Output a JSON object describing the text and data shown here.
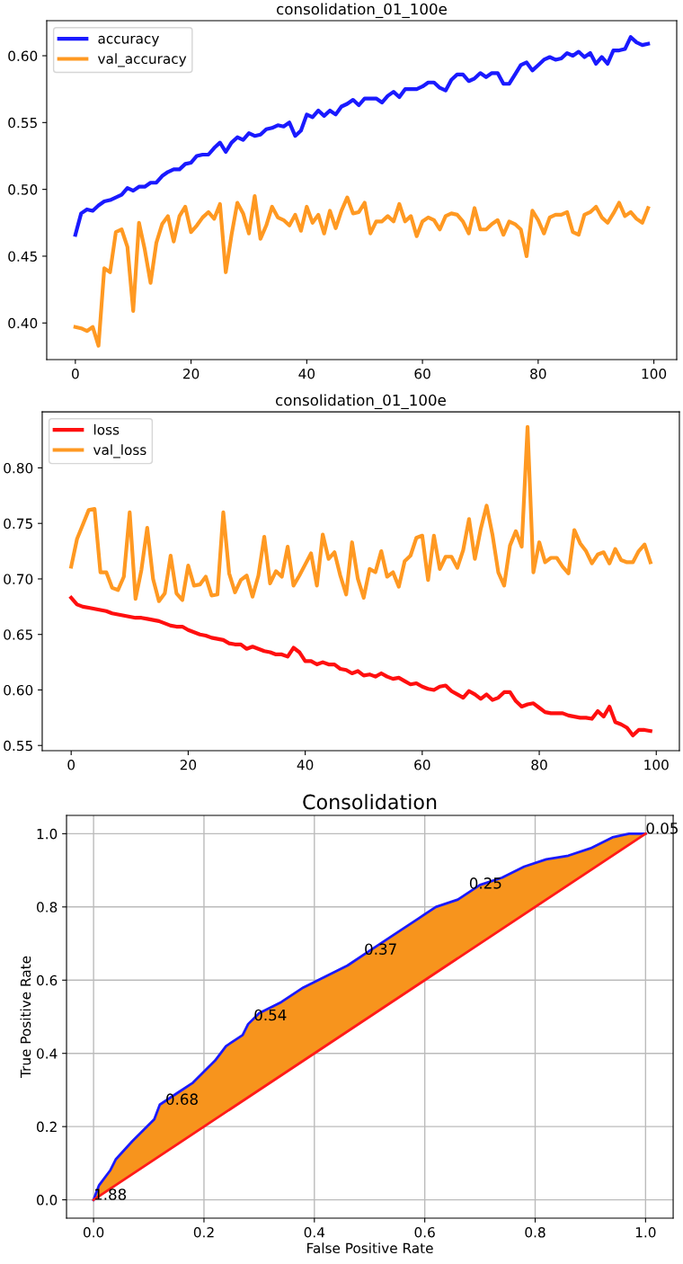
{
  "chart_data": [
    {
      "type": "line",
      "title": "consolidation_01_100e",
      "legend": "top left",
      "grid": false,
      "xlim": [
        -4.95,
        103.95
      ],
      "xticks": [
        0,
        20,
        40,
        60,
        80,
        100
      ],
      "ylim": [
        0.3726,
        0.6262
      ],
      "yticks": [
        {
          "value": 0.4,
          "label": "0.40"
        },
        {
          "value": 0.45,
          "label": "0.45"
        },
        {
          "value": 0.5,
          "label": "0.50"
        },
        {
          "value": 0.55,
          "label": "0.55"
        },
        {
          "value": 0.6,
          "label": "0.60"
        }
      ],
      "x": [
        0,
        1,
        2,
        3,
        4,
        5,
        6,
        7,
        8,
        9,
        10,
        11,
        12,
        13,
        14,
        15,
        16,
        17,
        18,
        19,
        20,
        21,
        22,
        23,
        24,
        25,
        26,
        27,
        28,
        29,
        30,
        31,
        32,
        33,
        34,
        35,
        36,
        37,
        38,
        39,
        40,
        41,
        42,
        43,
        44,
        45,
        46,
        47,
        48,
        49,
        50,
        51,
        52,
        53,
        54,
        55,
        56,
        57,
        58,
        59,
        60,
        61,
        62,
        63,
        64,
        65,
        66,
        67,
        68,
        69,
        70,
        71,
        72,
        73,
        74,
        75,
        76,
        77,
        78,
        79,
        80,
        81,
        82,
        83,
        84,
        85,
        86,
        87,
        88,
        89,
        90,
        91,
        92,
        93,
        94,
        95,
        96,
        97,
        98,
        99
      ],
      "series": [
        {
          "name": "accuracy",
          "color": "#1a1aff",
          "values": [
            0.466,
            0.482,
            0.485,
            0.484,
            0.488,
            0.491,
            0.492,
            0.494,
            0.496,
            0.501,
            0.499,
            0.502,
            0.502,
            0.505,
            0.505,
            0.51,
            0.513,
            0.515,
            0.515,
            0.519,
            0.52,
            0.525,
            0.526,
            0.526,
            0.531,
            0.535,
            0.528,
            0.535,
            0.539,
            0.537,
            0.542,
            0.54,
            0.541,
            0.545,
            0.546,
            0.548,
            0.547,
            0.55,
            0.54,
            0.544,
            0.556,
            0.554,
            0.559,
            0.555,
            0.559,
            0.556,
            0.562,
            0.564,
            0.567,
            0.563,
            0.568,
            0.568,
            0.568,
            0.565,
            0.57,
            0.573,
            0.569,
            0.575,
            0.575,
            0.575,
            0.577,
            0.58,
            0.58,
            0.576,
            0.574,
            0.582,
            0.586,
            0.586,
            0.581,
            0.583,
            0.587,
            0.584,
            0.587,
            0.587,
            0.579,
            0.579,
            0.586,
            0.593,
            0.595,
            0.589,
            0.593,
            0.597,
            0.599,
            0.597,
            0.598,
            0.602,
            0.6,
            0.603,
            0.599,
            0.602,
            0.594,
            0.599,
            0.594,
            0.604,
            0.604,
            0.605,
            0.614,
            0.61,
            0.608,
            0.609
          ]
        },
        {
          "name": "val_accuracy",
          "color": "#ff9922",
          "values": [
            0.397,
            0.396,
            0.394,
            0.397,
            0.383,
            0.441,
            0.438,
            0.468,
            0.47,
            0.457,
            0.409,
            0.475,
            0.455,
            0.43,
            0.46,
            0.474,
            0.48,
            0.461,
            0.48,
            0.487,
            0.468,
            0.473,
            0.479,
            0.483,
            0.478,
            0.489,
            0.438,
            0.466,
            0.49,
            0.482,
            0.467,
            0.495,
            0.463,
            0.473,
            0.487,
            0.479,
            0.477,
            0.473,
            0.481,
            0.469,
            0.487,
            0.475,
            0.481,
            0.467,
            0.484,
            0.471,
            0.484,
            0.494,
            0.482,
            0.483,
            0.49,
            0.467,
            0.476,
            0.476,
            0.48,
            0.476,
            0.489,
            0.476,
            0.48,
            0.465,
            0.476,
            0.479,
            0.477,
            0.47,
            0.48,
            0.482,
            0.481,
            0.476,
            0.467,
            0.486,
            0.47,
            0.47,
            0.474,
            0.477,
            0.466,
            0.476,
            0.474,
            0.47,
            0.45,
            0.484,
            0.477,
            0.467,
            0.479,
            0.481,
            0.481,
            0.483,
            0.468,
            0.466,
            0.481,
            0.483,
            0.487,
            0.479,
            0.475,
            0.482,
            0.49,
            0.48,
            0.483,
            0.478,
            0.475,
            0.486
          ]
        }
      ]
    },
    {
      "type": "line",
      "title": "consolidation_01_100e",
      "legend": "top left",
      "grid": false,
      "xlim": [
        -4.95,
        103.95
      ],
      "xticks": [
        0,
        20,
        40,
        60,
        80,
        100
      ],
      "ylim": [
        0.5453,
        0.8505
      ],
      "yticks": [
        {
          "value": 0.55,
          "label": "0.55"
        },
        {
          "value": 0.6,
          "label": "0.60"
        },
        {
          "value": 0.65,
          "label": "0.65"
        },
        {
          "value": 0.7,
          "label": "0.70"
        },
        {
          "value": 0.75,
          "label": "0.75"
        },
        {
          "value": 0.8,
          "label": "0.80"
        }
      ],
      "x": [
        0,
        1,
        2,
        3,
        4,
        5,
        6,
        7,
        8,
        9,
        10,
        11,
        12,
        13,
        14,
        15,
        16,
        17,
        18,
        19,
        20,
        21,
        22,
        23,
        24,
        25,
        26,
        27,
        28,
        29,
        30,
        31,
        32,
        33,
        34,
        35,
        36,
        37,
        38,
        39,
        40,
        41,
        42,
        43,
        44,
        45,
        46,
        47,
        48,
        49,
        50,
        51,
        52,
        53,
        54,
        55,
        56,
        57,
        58,
        59,
        60,
        61,
        62,
        63,
        64,
        65,
        66,
        67,
        68,
        69,
        70,
        71,
        72,
        73,
        74,
        75,
        76,
        77,
        78,
        79,
        80,
        81,
        82,
        83,
        84,
        85,
        86,
        87,
        88,
        89,
        90,
        91,
        92,
        93,
        94,
        95,
        96,
        97,
        98,
        99
      ],
      "series": [
        {
          "name": "loss",
          "color": "#ff0f0f",
          "values": [
            0.683,
            0.677,
            0.675,
            0.674,
            0.673,
            0.672,
            0.671,
            0.669,
            0.668,
            0.667,
            0.666,
            0.665,
            0.665,
            0.664,
            0.663,
            0.662,
            0.66,
            0.658,
            0.657,
            0.657,
            0.654,
            0.652,
            0.65,
            0.649,
            0.647,
            0.646,
            0.645,
            0.642,
            0.641,
            0.641,
            0.637,
            0.639,
            0.637,
            0.635,
            0.634,
            0.632,
            0.632,
            0.63,
            0.638,
            0.634,
            0.626,
            0.626,
            0.623,
            0.625,
            0.623,
            0.623,
            0.619,
            0.618,
            0.615,
            0.617,
            0.613,
            0.614,
            0.612,
            0.615,
            0.612,
            0.61,
            0.611,
            0.608,
            0.605,
            0.606,
            0.603,
            0.601,
            0.6,
            0.603,
            0.604,
            0.599,
            0.596,
            0.593,
            0.599,
            0.596,
            0.592,
            0.596,
            0.591,
            0.593,
            0.598,
            0.598,
            0.59,
            0.585,
            0.587,
            0.588,
            0.584,
            0.58,
            0.579,
            0.579,
            0.579,
            0.577,
            0.576,
            0.575,
            0.575,
            0.574,
            0.581,
            0.576,
            0.585,
            0.571,
            0.569,
            0.566,
            0.559,
            0.564,
            0.564,
            0.563
          ]
        },
        {
          "name": "val_loss",
          "color": "#ff9922",
          "values": [
            0.711,
            0.736,
            0.749,
            0.762,
            0.763,
            0.706,
            0.706,
            0.692,
            0.69,
            0.702,
            0.76,
            0.682,
            0.708,
            0.746,
            0.7,
            0.68,
            0.687,
            0.721,
            0.687,
            0.681,
            0.712,
            0.694,
            0.695,
            0.702,
            0.685,
            0.686,
            0.76,
            0.705,
            0.688,
            0.699,
            0.703,
            0.684,
            0.703,
            0.738,
            0.696,
            0.707,
            0.702,
            0.729,
            0.694,
            0.703,
            0.713,
            0.723,
            0.694,
            0.74,
            0.718,
            0.724,
            0.703,
            0.686,
            0.733,
            0.7,
            0.683,
            0.709,
            0.706,
            0.725,
            0.702,
            0.706,
            0.693,
            0.716,
            0.721,
            0.737,
            0.739,
            0.699,
            0.739,
            0.709,
            0.72,
            0.72,
            0.71,
            0.726,
            0.754,
            0.718,
            0.745,
            0.766,
            0.74,
            0.706,
            0.694,
            0.73,
            0.743,
            0.729,
            0.837,
            0.706,
            0.733,
            0.715,
            0.719,
            0.719,
            0.711,
            0.705,
            0.744,
            0.732,
            0.725,
            0.714,
            0.722,
            0.724,
            0.714,
            0.727,
            0.717,
            0.715,
            0.715,
            0.725,
            0.731,
            0.715
          ]
        }
      ]
    },
    {
      "type": "line",
      "title": "Consolidation",
      "xlabel": "False Positive Rate",
      "ylabel": "True Positive Rate",
      "grid": true,
      "xlim": [
        -0.049,
        1.05
      ],
      "xticks": [
        {
          "value": 0,
          "label": "0.0"
        },
        {
          "value": 0.2,
          "label": "0.2"
        },
        {
          "value": 0.4,
          "label": "0.4"
        },
        {
          "value": 0.6,
          "label": "0.6"
        },
        {
          "value": 0.8,
          "label": "0.8"
        },
        {
          "value": 1,
          "label": "1.0"
        }
      ],
      "ylim": [
        -0.05,
        1.05
      ],
      "yticks": [
        {
          "value": 0,
          "label": "0.0"
        },
        {
          "value": 0.2,
          "label": "0.2"
        },
        {
          "value": 0.4,
          "label": "0.4"
        },
        {
          "value": 0.6,
          "label": "0.6"
        },
        {
          "value": 0.8,
          "label": "0.8"
        },
        {
          "value": 1,
          "label": "1.0"
        }
      ],
      "series": [
        {
          "type": "line",
          "color": "#1a1aff",
          "lower": [
            0,
            0.01,
            0.03,
            0.04,
            0.07,
            0.09,
            0.11,
            0.12,
            0.15,
            0.18,
            0.2,
            0.22,
            0.24,
            0.27,
            0.28,
            0.3,
            0.34,
            0.38,
            0.42,
            0.46,
            0.5,
            0.54,
            0.59,
            0.62,
            0.66,
            0.7,
            0.74,
            0.78,
            0.82,
            0.86,
            0.9,
            0.94,
            0.97,
            1
          ],
          "upper": [
            0,
            0.04,
            0.08,
            0.11,
            0.16,
            0.19,
            0.22,
            0.26,
            0.29,
            0.32,
            0.35,
            0.38,
            0.42,
            0.45,
            0.48,
            0.51,
            0.54,
            0.58,
            0.61,
            0.64,
            0.68,
            0.72,
            0.77,
            0.8,
            0.82,
            0.86,
            0.88,
            0.91,
            0.93,
            0.94,
            0.96,
            0.99,
            1,
            1
          ],
          "x": [
            0,
            0.01,
            0.03,
            0.04,
            0.07,
            0.09,
            0.11,
            0.12,
            0.15,
            0.18,
            0.2,
            0.22,
            0.24,
            0.27,
            0.28,
            0.3,
            0.34,
            0.38,
            0.42,
            0.46,
            0.5,
            0.54,
            0.59,
            0.62,
            0.66,
            0.7,
            0.74,
            0.78,
            0.82,
            0.86,
            0.9,
            0.94,
            0.97,
            1
          ],
          "values": [
            0,
            0.04,
            0.08,
            0.11,
            0.16,
            0.19,
            0.22,
            0.26,
            0.29,
            0.32,
            0.35,
            0.38,
            0.42,
            0.45,
            0.48,
            0.51,
            0.54,
            0.58,
            0.61,
            0.64,
            0.68,
            0.72,
            0.77,
            0.8,
            0.82,
            0.86,
            0.88,
            0.91,
            0.93,
            0.94,
            0.96,
            0.99,
            1,
            1
          ]
        },
        {
          "type": "line",
          "color": "#ff1a1a",
          "x": [
            0,
            1
          ],
          "values": [
            0,
            1
          ]
        }
      ],
      "annotations": [
        {
          "text": "1.88",
          "x": 0.0,
          "y": 0.0
        },
        {
          "text": "0.68",
          "x": 0.13,
          "y": 0.26
        },
        {
          "text": "0.54",
          "x": 0.29,
          "y": 0.49
        },
        {
          "text": "0.37",
          "x": 0.49,
          "y": 0.67
        },
        {
          "text": "0.25",
          "x": 0.68,
          "y": 0.85
        },
        {
          "text": "0.05",
          "x": 1.0,
          "y": 1.0
        }
      ]
    }
  ]
}
